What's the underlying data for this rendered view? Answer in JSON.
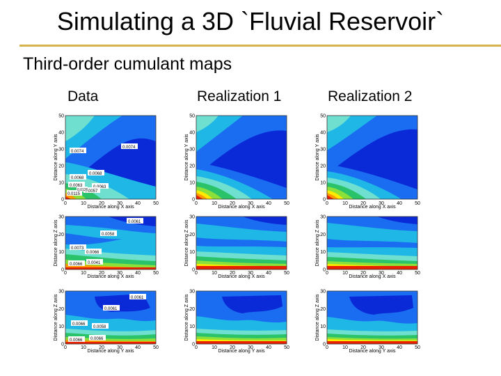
{
  "slide": {
    "title": "Simulating a 3D `Fluvial Reservoir`",
    "subtitle": "Third-order cumulant maps",
    "columns": [
      "Data",
      "Realization 1",
      "Realization 2"
    ]
  },
  "palette": [
    "#0a2ad8",
    "#1a6cf0",
    "#1fb8e6",
    "#6fe0d0",
    "#2bc36a",
    "#8be03a",
    "#ffea00",
    "#ff9b00",
    "#e82000"
  ],
  "axes": {
    "xy": {
      "xlabel": "Distance along X axis",
      "ylabel": "Distance along Y axis",
      "xticks": [
        "0",
        "10",
        "20",
        "30",
        "40",
        "50"
      ],
      "yticks": [
        "0",
        "10",
        "20",
        "30",
        "40",
        "50"
      ]
    },
    "xz": {
      "xlabel": "Distance along X axis",
      "ylabel": "Distance along Z axis",
      "xticks": [
        "0",
        "10",
        "20",
        "30",
        "40",
        "50"
      ],
      "yticks": [
        "0",
        "10",
        "20",
        "30"
      ]
    },
    "yz": {
      "xlabel": "Distance along Y axis",
      "ylabel": "Distance along Z axis",
      "xticks": [
        "0",
        "10",
        "20",
        "30",
        "40",
        "50"
      ],
      "yticks": [
        "0",
        "10",
        "20",
        "30"
      ]
    }
  },
  "contour_labels": {
    "xy_data": [
      "0.0074",
      "0.0074",
      "0.0068",
      "0.0068",
      "0.0063",
      "0.0063",
      "0.0057",
      "0.0115",
      "0.0126"
    ],
    "xz_data": [
      "0.0061",
      "0.0058",
      "0.0073",
      "0.0066",
      "0.0066",
      "0.0041"
    ],
    "yz_data": [
      "0.0061",
      "0.0061",
      "0.0066",
      "0.0058",
      "0.0066",
      "0.0066"
    ]
  }
}
